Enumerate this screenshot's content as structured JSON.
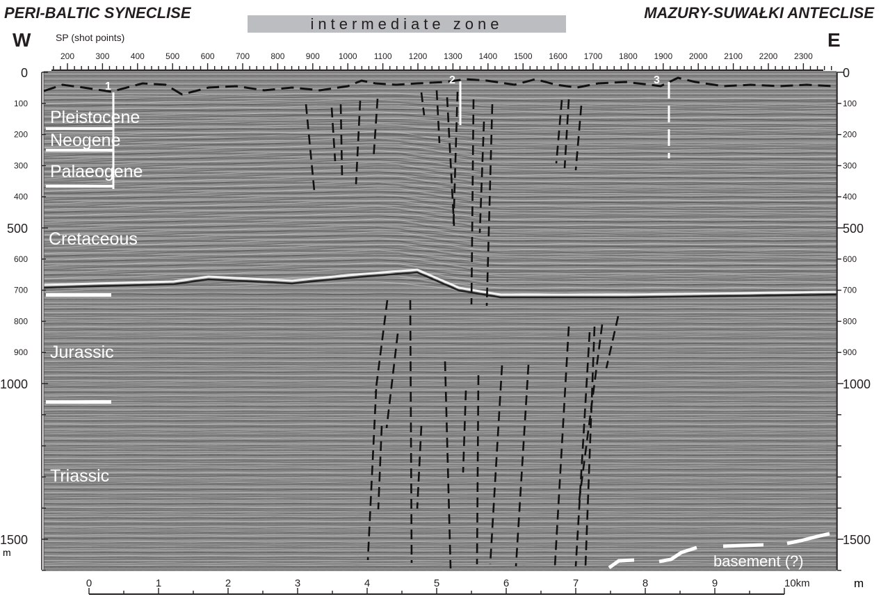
{
  "header": {
    "left_region": "PERI-BALTIC SYNECLISE",
    "zone": "intermediate zone",
    "right_region": "MAZURY-SUWAŁKI ANTECLISE",
    "west": "W",
    "east": "E"
  },
  "sp_axis": {
    "title": "SP (shot points)",
    "labels": [
      "200",
      "300",
      "400",
      "500",
      "600",
      "700",
      "800",
      "900",
      "1000",
      "1100",
      "1200",
      "1300",
      "1400",
      "1500",
      "1600",
      "1700",
      "1800",
      "1900",
      "2000",
      "2100",
      "2200",
      "2300"
    ]
  },
  "depth_axis": {
    "left_major": [
      "0",
      "500",
      "1000",
      "1500"
    ],
    "left_minor": [
      "100",
      "200",
      "300",
      "400",
      "600",
      "700",
      "800",
      "900"
    ],
    "right_major": [
      "0",
      "500",
      "1000",
      "1500"
    ],
    "right_minor": [
      "100",
      "200",
      "300",
      "400",
      "600",
      "700",
      "800",
      "900"
    ],
    "unit": "m"
  },
  "distance_axis": {
    "labels": [
      "0",
      "1",
      "2",
      "3",
      "4",
      "5",
      "6",
      "7",
      "8",
      "9",
      "10km"
    ],
    "unit": "m"
  },
  "units": {
    "Pleistocene": "Pleistocene",
    "Neogene": "Neogene",
    "Palaeogene": "Palaeogene",
    "Cretaceous": "Cretaceous",
    "Jurassic": "Jurassic",
    "Triassic": "Triassic",
    "basement": "basement (?)"
  },
  "wells": [
    "1",
    "2",
    "3"
  ],
  "colors": {
    "section_bg": "#8d8d8d",
    "marker": "#ffffff",
    "fault": "#111111",
    "zone_band": "#bcbdc0"
  }
}
